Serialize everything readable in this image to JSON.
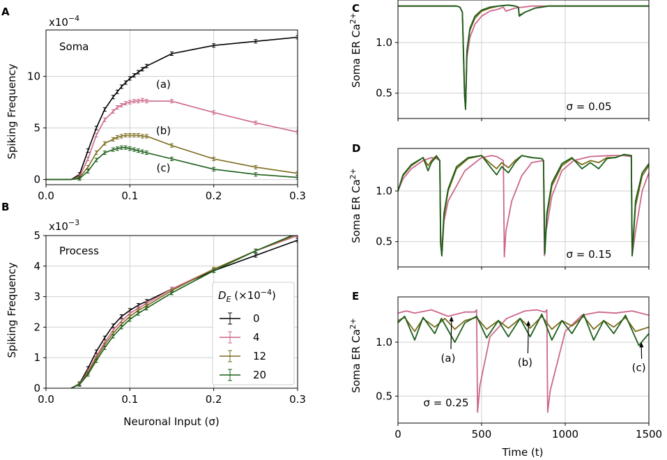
{
  "colors": {
    "D0": "#000000",
    "D4": "#cc6688",
    "D12": "#7a6a1a",
    "D20": "#1a5e1a"
  },
  "panel_letters": {
    "A": "A",
    "B": "B",
    "C": "C",
    "D": "D",
    "E": "E"
  },
  "chart_data": [
    {
      "id": "A",
      "type": "line",
      "title": "Soma",
      "xlabel": "",
      "ylabel": "Spiking Frequency",
      "y_multiplier": "x10",
      "y_exponent": "−4",
      "xlim": [
        0,
        0.3
      ],
      "ylim": [
        -0.5,
        14.5
      ],
      "xticks": [
        0,
        0.1,
        0.2,
        0.3
      ],
      "xtick_labels": [
        "0.0",
        "0.1",
        "0.2",
        "0.3"
      ],
      "yticks": [
        0,
        5,
        10
      ],
      "ytick_labels": [
        "0",
        "5",
        "10"
      ],
      "grid": true,
      "series": [
        {
          "name": "0",
          "color": "D0",
          "x": [
            0,
            0.03,
            0.04,
            0.05,
            0.06,
            0.07,
            0.08,
            0.085,
            0.09,
            0.095,
            0.1,
            0.105,
            0.11,
            0.115,
            0.12,
            0.15,
            0.2,
            0.25,
            0.3
          ],
          "y": [
            0,
            0,
            0.5,
            2.8,
            5.0,
            6.8,
            8.0,
            8.5,
            9.0,
            9.4,
            9.8,
            10.1,
            10.4,
            10.7,
            11.0,
            12.2,
            13.0,
            13.4,
            13.8
          ]
        },
        {
          "name": "4",
          "color": "D4",
          "x": [
            0,
            0.03,
            0.04,
            0.05,
            0.06,
            0.07,
            0.08,
            0.085,
            0.09,
            0.095,
            0.1,
            0.105,
            0.11,
            0.115,
            0.12,
            0.15,
            0.2,
            0.25,
            0.3
          ],
          "y": [
            0,
            0,
            0.3,
            2.0,
            4.3,
            5.8,
            6.6,
            7.0,
            7.2,
            7.4,
            7.5,
            7.6,
            7.6,
            7.7,
            7.6,
            7.6,
            6.5,
            5.5,
            4.6
          ]
        },
        {
          "name": "12",
          "color": "D12",
          "x": [
            0,
            0.03,
            0.04,
            0.05,
            0.06,
            0.07,
            0.08,
            0.085,
            0.09,
            0.095,
            0.1,
            0.105,
            0.11,
            0.115,
            0.12,
            0.15,
            0.2,
            0.25,
            0.3
          ],
          "y": [
            0,
            0,
            0.2,
            1.2,
            2.6,
            3.5,
            3.9,
            4.1,
            4.2,
            4.3,
            4.3,
            4.3,
            4.3,
            4.2,
            4.2,
            3.3,
            2.0,
            1.2,
            0.6
          ]
        },
        {
          "name": "20",
          "color": "D20",
          "x": [
            0,
            0.03,
            0.04,
            0.05,
            0.06,
            0.07,
            0.08,
            0.085,
            0.09,
            0.095,
            0.1,
            0.105,
            0.11,
            0.115,
            0.12,
            0.15,
            0.2,
            0.25,
            0.3
          ],
          "y": [
            0,
            0,
            0.1,
            0.8,
            1.9,
            2.6,
            2.9,
            3.0,
            3.1,
            3.1,
            3.0,
            2.9,
            2.8,
            2.7,
            2.6,
            2.0,
            1.0,
            0.5,
            0.2
          ]
        }
      ],
      "annotations": [
        {
          "text": "(a)",
          "x": 0.14,
          "y": 8.9
        },
        {
          "text": "(b)",
          "x": 0.14,
          "y": 4.4
        },
        {
          "text": "(c)",
          "x": 0.14,
          "y": 0.8
        }
      ]
    },
    {
      "id": "B",
      "type": "line",
      "title": "Process",
      "xlabel": "Neuronal Input (σ)",
      "ylabel": "Spiking Frequency",
      "y_multiplier": "x10",
      "y_exponent": "−3",
      "xlim": [
        0,
        0.3
      ],
      "ylim": [
        0,
        5
      ],
      "xticks": [
        0,
        0.1,
        0.2,
        0.3
      ],
      "xtick_labels": [
        "0.0",
        "0.1",
        "0.2",
        "0.3"
      ],
      "yticks": [
        0,
        1,
        2,
        3,
        4,
        5
      ],
      "ytick_labels": [
        "0",
        "1",
        "2",
        "3",
        "4",
        "5"
      ],
      "grid": true,
      "legend": {
        "title": "D_E (×10^−4)",
        "title_main": "D",
        "title_sub": "E",
        "title_rest": " (×10",
        "title_exp": "−4",
        "title_close": ")",
        "placement": "lower-right",
        "entries": [
          "0",
          "4",
          "12",
          "20"
        ]
      },
      "series": [
        {
          "name": "0",
          "color": "D0",
          "x": [
            0.03,
            0.04,
            0.05,
            0.06,
            0.07,
            0.08,
            0.09,
            0.1,
            0.11,
            0.12,
            0.15,
            0.2,
            0.25,
            0.3
          ],
          "y": [
            0,
            0.15,
            0.65,
            1.2,
            1.65,
            2.05,
            2.35,
            2.55,
            2.72,
            2.85,
            3.25,
            3.85,
            4.35,
            4.85
          ]
        },
        {
          "name": "4",
          "color": "D4",
          "x": [
            0.03,
            0.04,
            0.05,
            0.06,
            0.07,
            0.08,
            0.09,
            0.1,
            0.11,
            0.12,
            0.15,
            0.2,
            0.25,
            0.3
          ],
          "y": [
            0,
            0.14,
            0.55,
            1.05,
            1.5,
            1.9,
            2.2,
            2.45,
            2.62,
            2.78,
            3.25,
            3.9,
            4.5,
            5.0
          ]
        },
        {
          "name": "12",
          "color": "D12",
          "x": [
            0.03,
            0.04,
            0.05,
            0.06,
            0.07,
            0.08,
            0.09,
            0.1,
            0.11,
            0.12,
            0.15,
            0.2,
            0.25,
            0.3
          ],
          "y": [
            0,
            0.13,
            0.5,
            0.98,
            1.42,
            1.8,
            2.1,
            2.35,
            2.55,
            2.7,
            3.2,
            3.9,
            4.5,
            5.05
          ]
        },
        {
          "name": "20",
          "color": "D20",
          "x": [
            0.03,
            0.04,
            0.05,
            0.06,
            0.07,
            0.08,
            0.09,
            0.1,
            0.11,
            0.12,
            0.15,
            0.2,
            0.25,
            0.3
          ],
          "y": [
            0,
            0.12,
            0.45,
            0.9,
            1.32,
            1.7,
            2.0,
            2.25,
            2.45,
            2.62,
            3.12,
            3.85,
            4.5,
            5.08
          ]
        }
      ]
    },
    {
      "id": "C",
      "type": "line",
      "xlabel": "",
      "ylabel": "Soma ER Ca",
      "ylabel_sup": "2+",
      "annotation": "σ = 0.05",
      "xlim": [
        0,
        1500
      ],
      "ylim": [
        0.25,
        1.42
      ],
      "xticks": [
        0,
        500,
        1000,
        1500
      ],
      "yticks": [
        0.5,
        1.0
      ],
      "ytick_labels": [
        "0.5",
        "1.0"
      ],
      "grid": true,
      "series": [
        {
          "name": "4",
          "color": "D4",
          "x": [
            0,
            350,
            370,
            385,
            398,
            404,
            412,
            430,
            460,
            500,
            550,
            600,
            630,
            645,
            700,
            800,
            850,
            1000,
            1500
          ],
          "y": [
            1.36,
            1.36,
            1.35,
            1.3,
            0.55,
            0.35,
            0.85,
            1.05,
            1.18,
            1.26,
            1.31,
            1.33,
            1.35,
            1.31,
            1.34,
            1.36,
            1.36,
            1.36,
            1.36
          ]
        },
        {
          "name": "12",
          "color": "D12",
          "x": [
            0,
            350,
            370,
            385,
            398,
            404,
            412,
            430,
            460,
            500,
            550,
            600,
            660,
            700,
            720,
            725,
            760,
            820,
            900,
            1000,
            1500
          ],
          "y": [
            1.36,
            1.36,
            1.35,
            1.3,
            0.5,
            0.34,
            0.9,
            1.12,
            1.24,
            1.31,
            1.34,
            1.36,
            1.37,
            1.36,
            1.35,
            1.27,
            1.3,
            1.34,
            1.36,
            1.36,
            1.36
          ]
        },
        {
          "name": "20",
          "color": "D20",
          "x": [
            0,
            350,
            370,
            385,
            398,
            404,
            412,
            430,
            460,
            500,
            550,
            600,
            660,
            700,
            720,
            725,
            760,
            820,
            900,
            1000,
            1500
          ],
          "y": [
            1.36,
            1.36,
            1.35,
            1.3,
            0.48,
            0.34,
            0.92,
            1.14,
            1.26,
            1.32,
            1.35,
            1.36,
            1.37,
            1.36,
            1.35,
            1.26,
            1.3,
            1.34,
            1.36,
            1.36,
            1.36
          ]
        }
      ]
    },
    {
      "id": "D",
      "type": "line",
      "xlabel": "",
      "ylabel": "Soma ER Ca",
      "ylabel_sup": "2+",
      "annotation": "σ = 0.15",
      "xlim": [
        0,
        1500
      ],
      "ylim": [
        0.25,
        1.42
      ],
      "xticks": [
        0,
        500,
        1000,
        1500
      ],
      "yticks": [
        0.5,
        1.0
      ],
      "ytick_labels": [
        "0.5",
        "1.0"
      ],
      "grid": true,
      "series": [
        {
          "name": "4",
          "color": "D4",
          "x": [
            0,
            30,
            80,
            150,
            200,
            230,
            250,
            255,
            262,
            275,
            300,
            400,
            500,
            560,
            590,
            630,
            636,
            645,
            680,
            740,
            800,
            870,
            875,
            885,
            920,
            980,
            1050,
            1150,
            1270,
            1350,
            1395,
            1400,
            1420,
            1460,
            1500
          ],
          "y": [
            1.0,
            1.12,
            1.22,
            1.3,
            1.33,
            1.32,
            1.3,
            0.6,
            0.36,
            0.7,
            0.9,
            1.2,
            1.33,
            1.35,
            1.34,
            1.3,
            0.35,
            0.6,
            0.9,
            1.15,
            1.28,
            1.3,
            0.36,
            0.6,
            0.95,
            1.2,
            1.3,
            1.34,
            1.35,
            1.35,
            1.34,
            0.36,
            0.6,
            1.0,
            1.18
          ]
        },
        {
          "name": "12",
          "color": "D12",
          "x": [
            0,
            30,
            80,
            150,
            180,
            200,
            230,
            250,
            255,
            262,
            275,
            300,
            350,
            420,
            500,
            560,
            590,
            620,
            660,
            700,
            740,
            800,
            860,
            870,
            878,
            890,
            920,
            980,
            1040,
            1100,
            1150,
            1200,
            1250,
            1300,
            1350,
            1395,
            1400,
            1420,
            1460,
            1500
          ],
          "y": [
            1.0,
            1.15,
            1.25,
            1.33,
            1.25,
            1.3,
            1.35,
            1.3,
            0.5,
            0.36,
            0.75,
            1.0,
            1.22,
            1.32,
            1.35,
            1.26,
            1.22,
            1.28,
            1.23,
            1.3,
            1.35,
            1.33,
            1.32,
            1.3,
            0.38,
            0.75,
            1.05,
            1.25,
            1.32,
            1.26,
            1.3,
            1.28,
            1.33,
            1.33,
            1.36,
            1.35,
            0.36,
            0.85,
            1.15,
            1.25
          ]
        },
        {
          "name": "20",
          "color": "D20",
          "x": [
            0,
            30,
            80,
            150,
            180,
            200,
            230,
            250,
            255,
            262,
            275,
            300,
            350,
            420,
            500,
            560,
            590,
            620,
            660,
            700,
            740,
            800,
            860,
            870,
            878,
            890,
            920,
            980,
            1040,
            1100,
            1150,
            1200,
            1250,
            1300,
            1350,
            1395,
            1400,
            1420,
            1460,
            1500
          ],
          "y": [
            1.0,
            1.16,
            1.26,
            1.33,
            1.2,
            1.28,
            1.34,
            1.3,
            0.48,
            0.36,
            0.78,
            1.02,
            1.24,
            1.33,
            1.35,
            1.22,
            1.16,
            1.24,
            1.18,
            1.28,
            1.35,
            1.33,
            1.32,
            1.3,
            0.38,
            0.78,
            1.08,
            1.27,
            1.33,
            1.22,
            1.28,
            1.22,
            1.32,
            1.33,
            1.36,
            1.35,
            0.36,
            0.9,
            1.18,
            1.27
          ]
        }
      ]
    },
    {
      "id": "E",
      "type": "line",
      "xlabel": "Time (t)",
      "ylabel": "Soma ER Ca",
      "ylabel_sup": "2+",
      "annotation": "σ = 0.25",
      "xlim": [
        0,
        1500
      ],
      "ylim": [
        0.25,
        1.42
      ],
      "xticks": [
        0,
        500,
        1000,
        1500
      ],
      "xtick_labels": [
        "0",
        "500",
        "1000",
        "1500"
      ],
      "yticks": [
        0.5,
        1.0
      ],
      "ytick_labels": [
        "0.5",
        "1.0"
      ],
      "grid": true,
      "series": [
        {
          "name": "4",
          "color": "D4",
          "x": [
            0,
            50,
            100,
            200,
            300,
            400,
            460,
            470,
            476,
            490,
            550,
            650,
            760,
            830,
            880,
            890,
            895,
            910,
            1000,
            1100,
            1200,
            1300,
            1400,
            1500
          ],
          "y": [
            1.27,
            1.29,
            1.27,
            1.3,
            1.24,
            1.28,
            1.28,
            1.3,
            0.35,
            0.6,
            1.05,
            1.22,
            1.29,
            1.3,
            1.28,
            1.3,
            0.35,
            0.55,
            1.1,
            1.25,
            1.28,
            1.27,
            1.29,
            1.25
          ]
        },
        {
          "name": "12",
          "color": "D12",
          "x": [
            0,
            40,
            100,
            150,
            220,
            280,
            340,
            400,
            470,
            530,
            600,
            660,
            730,
            790,
            860,
            920,
            980,
            1040,
            1110,
            1170,
            1230,
            1290,
            1360,
            1420,
            1500
          ],
          "y": [
            1.2,
            1.23,
            1.1,
            1.22,
            1.14,
            1.22,
            1.12,
            1.2,
            1.23,
            1.12,
            1.2,
            1.13,
            1.22,
            1.13,
            1.24,
            1.12,
            1.2,
            1.15,
            1.24,
            1.12,
            1.2,
            1.14,
            1.23,
            1.1,
            1.14
          ]
        },
        {
          "name": "20",
          "color": "D20",
          "x": [
            0,
            40,
            100,
            150,
            220,
            260,
            340,
            400,
            470,
            530,
            600,
            660,
            730,
            790,
            860,
            920,
            980,
            1040,
            1110,
            1170,
            1230,
            1290,
            1360,
            1440,
            1500
          ],
          "y": [
            1.18,
            1.24,
            1.02,
            1.23,
            1.08,
            1.22,
            1.0,
            1.18,
            1.24,
            1.04,
            1.2,
            1.05,
            1.22,
            1.05,
            1.26,
            1.02,
            1.2,
            1.08,
            1.26,
            1.02,
            1.2,
            1.08,
            1.25,
            0.97,
            1.08
          ]
        }
      ],
      "arrows": [
        {
          "text": "(a)",
          "x_text": 300,
          "y_text": 0.82,
          "x_tip": 320,
          "y_tip": 1.24
        },
        {
          "text": "(b)",
          "x_text": 760,
          "y_text": 0.78,
          "x_tip": 780,
          "y_tip": 1.2
        },
        {
          "text": "(c)",
          "x_text": 1440,
          "y_text": 0.73,
          "x_tip": 1455,
          "y_tip": 1.0
        }
      ]
    }
  ]
}
